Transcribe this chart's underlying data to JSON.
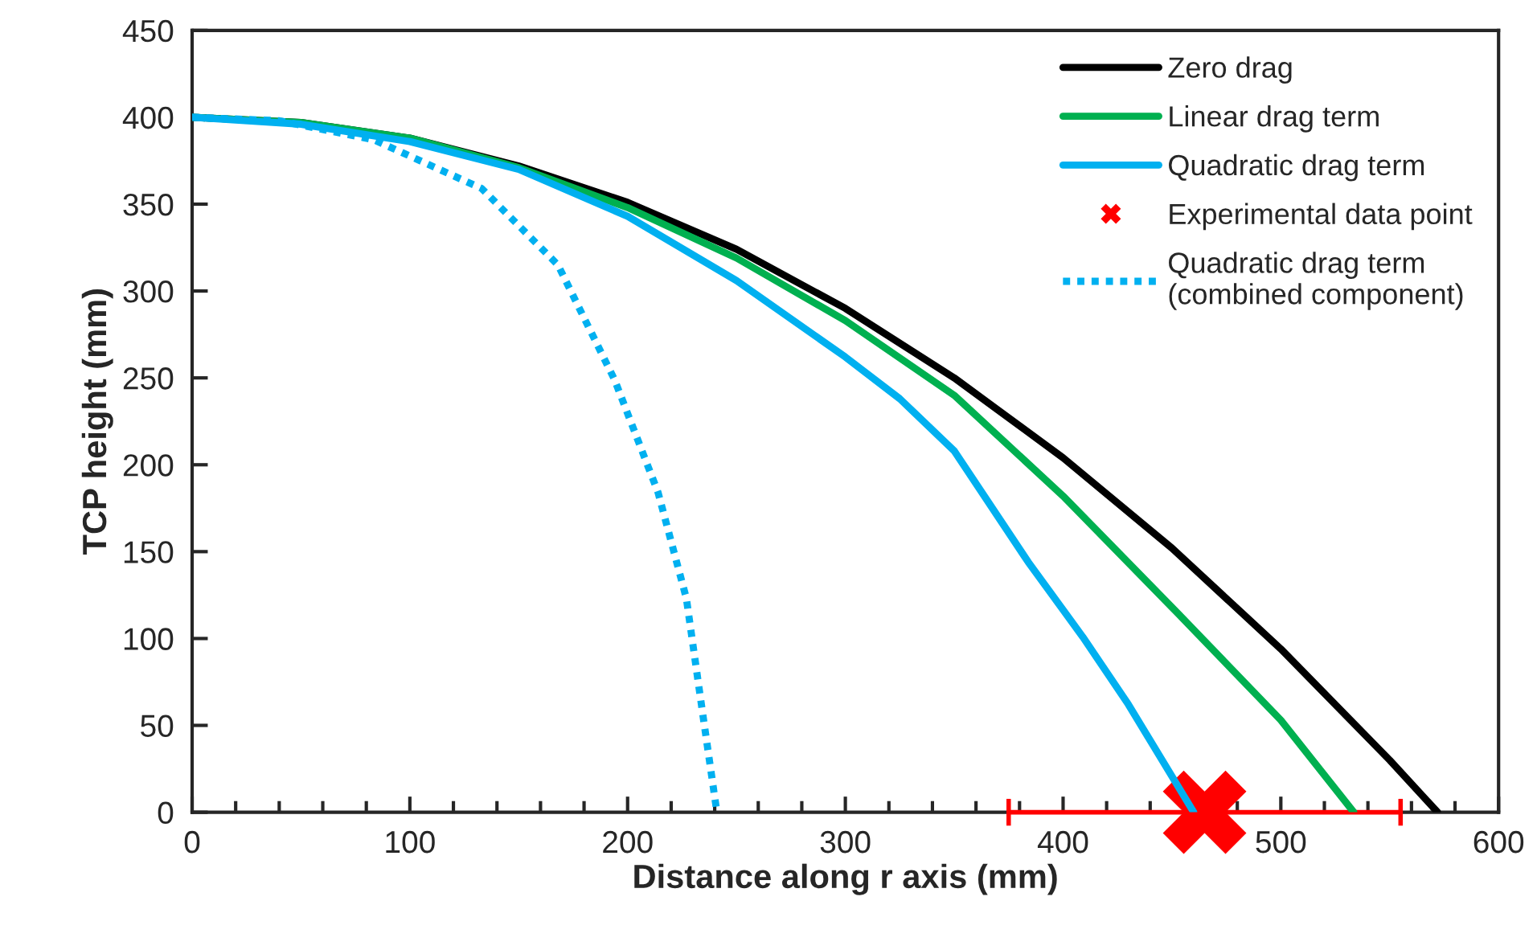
{
  "chart_data": {
    "type": "line",
    "xlabel": "Distance along r axis (mm)",
    "ylabel": "TCP height (mm)",
    "xlim": [
      0,
      600
    ],
    "xticks": [
      0,
      100,
      200,
      300,
      400,
      500,
      600
    ],
    "ylim": [
      0,
      450
    ],
    "yticks": [
      0,
      50,
      100,
      150,
      200,
      250,
      300,
      350,
      400,
      450
    ],
    "grid": false,
    "legend": "top right",
    "series": [
      {
        "name": "Zero drag",
        "color": "#000000",
        "line_style": "solid",
        "x": [
          0,
          50,
          100,
          150,
          200,
          250,
          300,
          350,
          400,
          450,
          500,
          550,
          572
        ],
        "values": [
          400,
          397,
          388,
          372,
          351,
          324,
          290,
          250,
          204,
          152,
          94,
          30,
          0
        ]
      },
      {
        "name": "Linear drag term",
        "color": "#00b050",
        "line_style": "solid",
        "x": [
          0,
          50,
          100,
          150,
          200,
          250,
          300,
          350,
          400,
          450,
          500,
          533.5
        ],
        "values": [
          400,
          397,
          388,
          371,
          348,
          319,
          283,
          240,
          182,
          118,
          53,
          0
        ]
      },
      {
        "name": "Quadratic drag term",
        "color": "#00b0f0",
        "line_style": "solid",
        "x": [
          0,
          50,
          100,
          150,
          200,
          250,
          300,
          325,
          350,
          384,
          409,
          430,
          460
        ],
        "values": [
          400,
          396,
          386,
          370,
          343,
          306,
          262,
          238,
          208,
          144,
          101,
          62,
          0
        ]
      },
      {
        "name": "Experimental data point",
        "color": "#ff0000",
        "type": "scatter",
        "marker": "cross",
        "x": [
          465
        ],
        "values": [
          0
        ],
        "xerrors": [
          90
        ]
      },
      {
        "name": "Quadratic drag term\n(combined component)",
        "color": "#00b0f0",
        "line_style": "dotted",
        "x": [
          0,
          40,
          83.5,
          133,
          168,
          194,
          214,
          227,
          234,
          241
        ],
        "values": [
          400,
          398,
          387,
          359,
          315,
          249,
          184,
          123,
          61,
          0
        ]
      }
    ]
  }
}
